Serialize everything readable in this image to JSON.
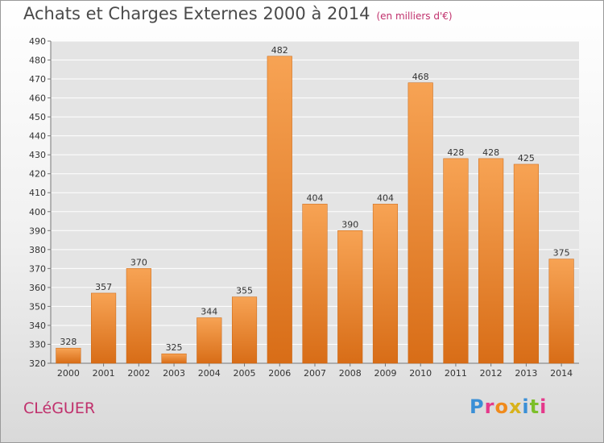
{
  "header": {
    "title": "Achats et Charges Externes 2000 à 2014",
    "subtitle": "(en milliers d'€)"
  },
  "footer": {
    "commune": "CLéGUER",
    "logo": "Proxiti"
  },
  "colors": {
    "bar_top": "#f7a354",
    "bar_bottom": "#d86d17",
    "bar_edge": "#c8630f",
    "grid": "#ffffff",
    "accent": "#c0306c",
    "logo_letters": [
      "#3a8fd6",
      "#e5398b",
      "#f08a1c",
      "#d8b21b",
      "#3a8fd6",
      "#7cbf2a",
      "#e5398b"
    ]
  },
  "chart_data": {
    "type": "bar",
    "categories": [
      "2000",
      "2001",
      "2002",
      "2003",
      "2004",
      "2005",
      "2006",
      "2007",
      "2008",
      "2009",
      "2010",
      "2011",
      "2012",
      "2013",
      "2014"
    ],
    "values": [
      328,
      357,
      370,
      325,
      344,
      355,
      482,
      404,
      390,
      404,
      468,
      428,
      428,
      425,
      375
    ],
    "ylim": [
      320,
      490
    ],
    "yticks": [
      320,
      330,
      340,
      350,
      360,
      370,
      380,
      390,
      400,
      410,
      420,
      430,
      440,
      450,
      460,
      470,
      480,
      490
    ],
    "grid": true
  }
}
